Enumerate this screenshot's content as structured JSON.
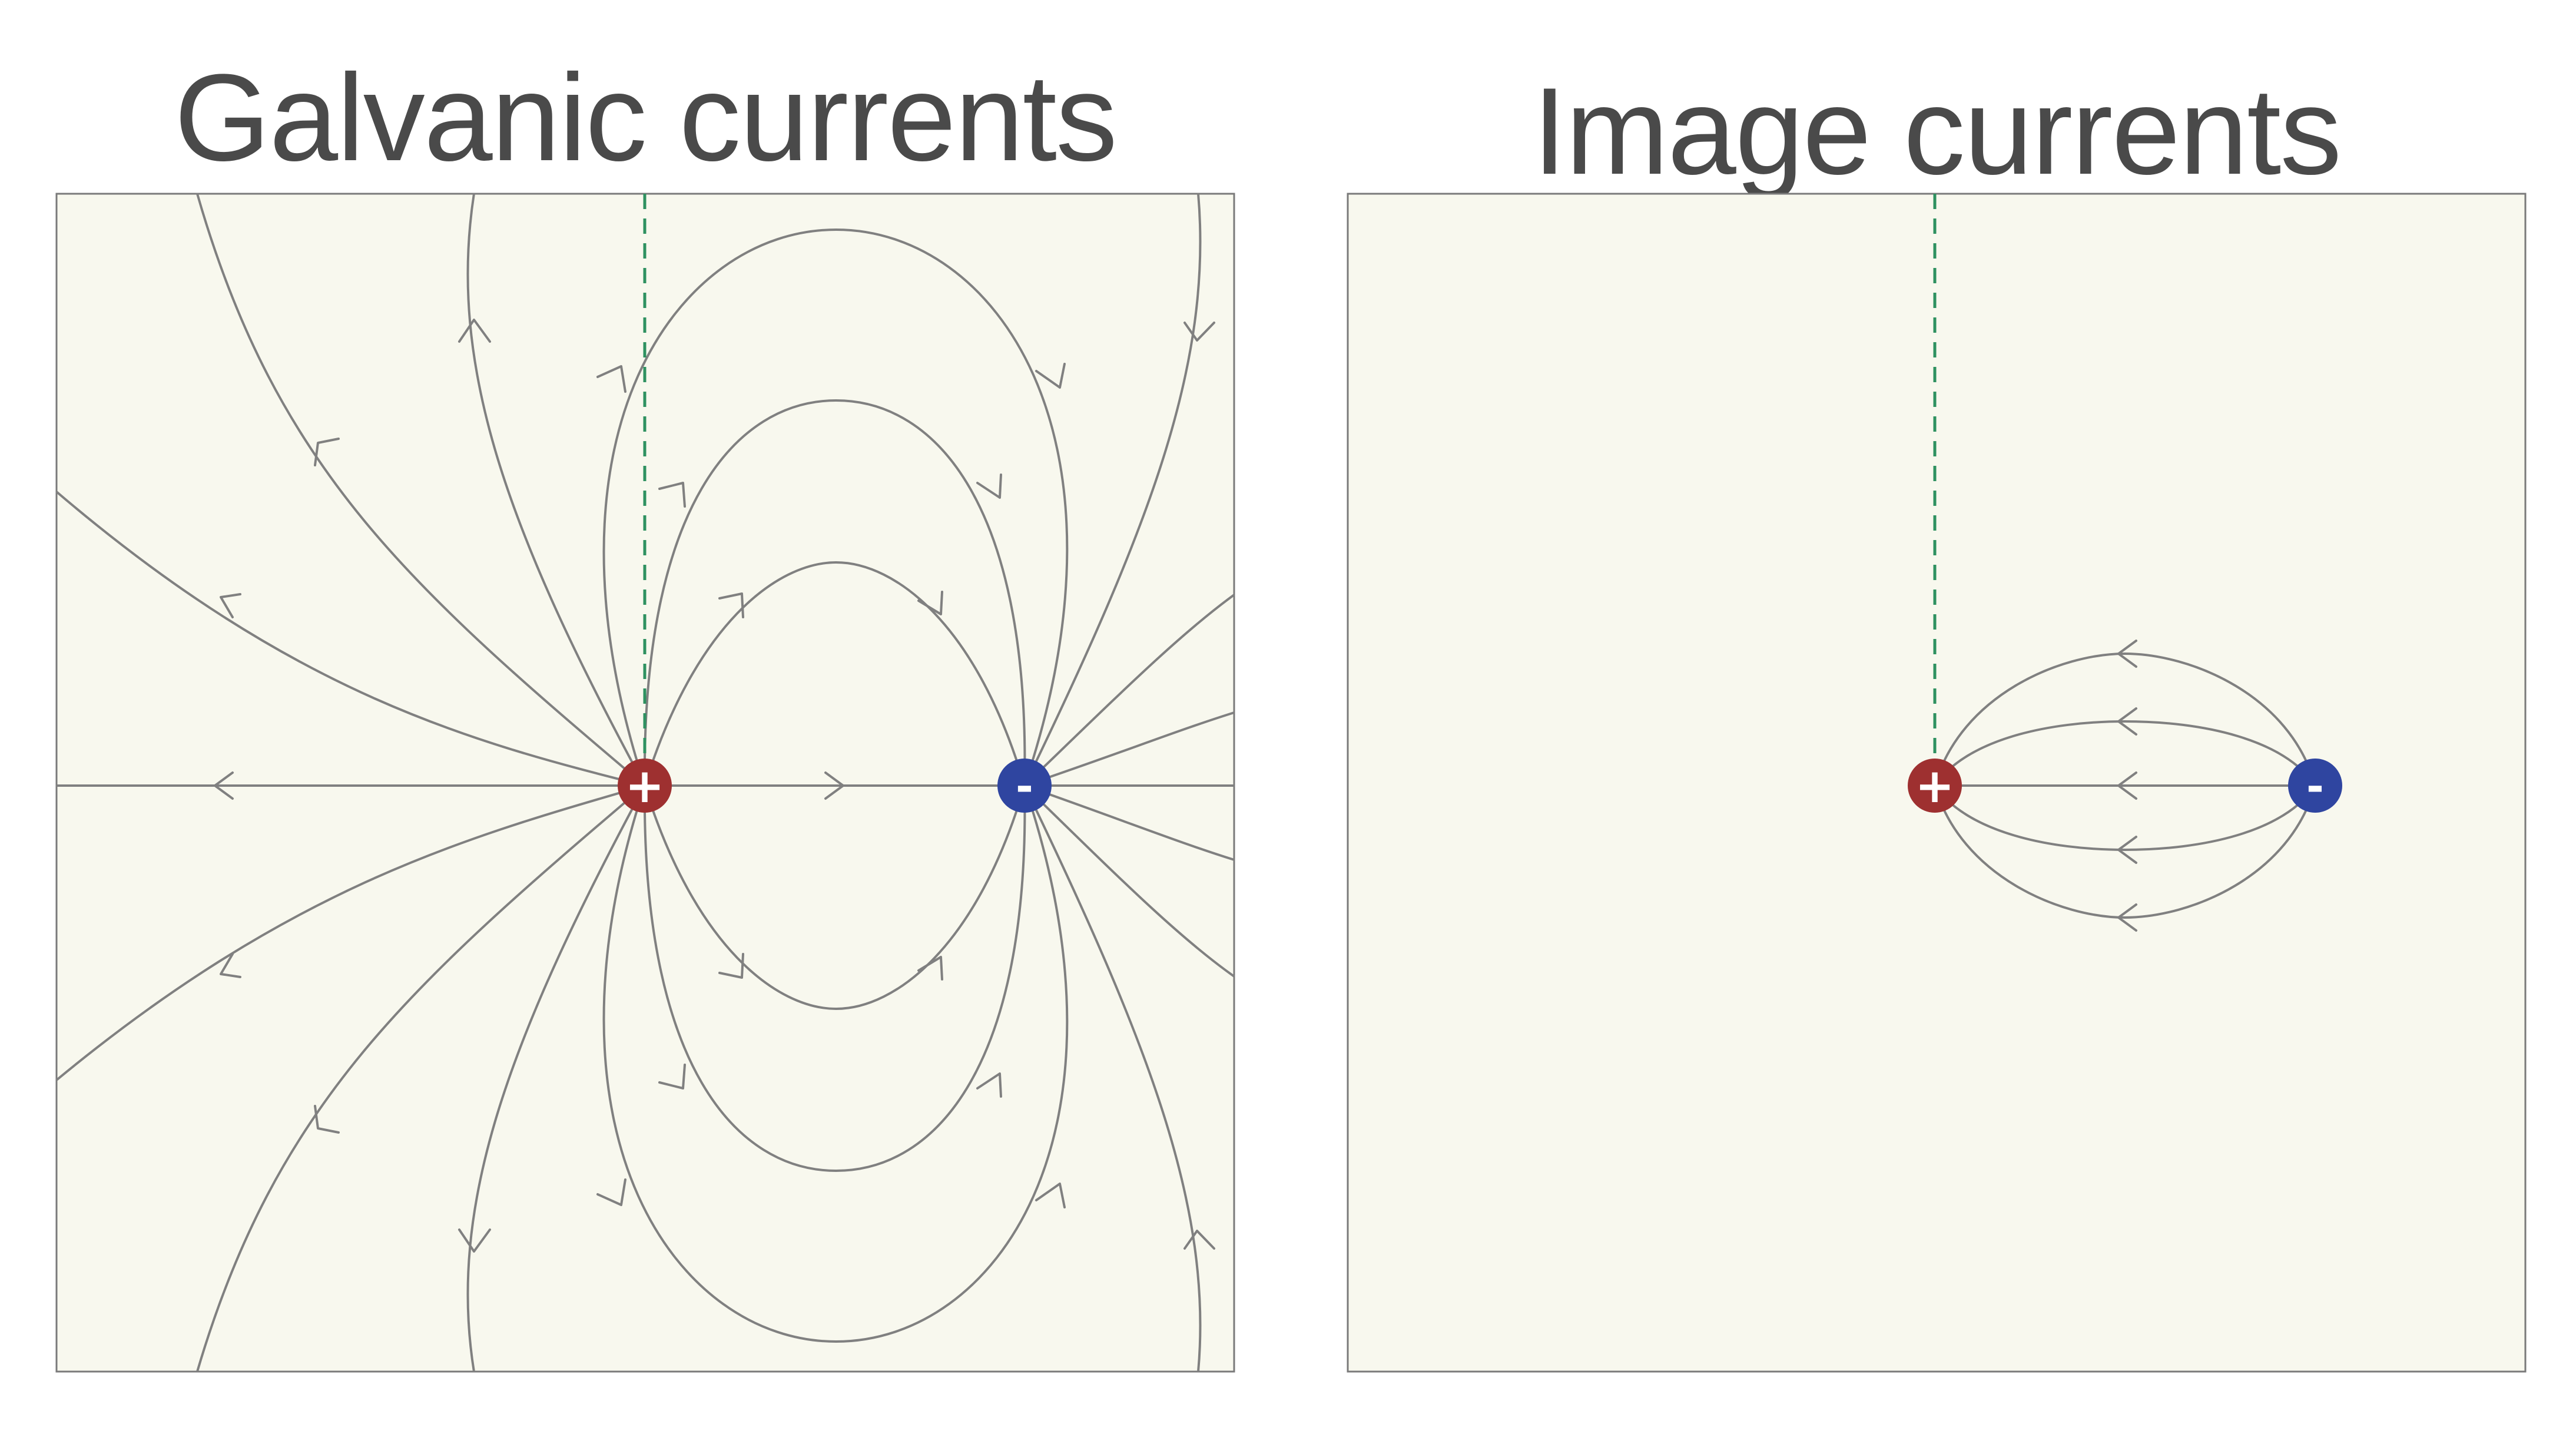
{
  "panels": [
    {
      "title": "Galvanic currents",
      "colors": {
        "background": "#f8f8ee",
        "lines": "#808080",
        "divider": "#2e9160"
      },
      "charges": [
        {
          "sign": "+",
          "color": "#9e3030"
        },
        {
          "sign": "-",
          "color": "#2f45a0"
        }
      ]
    },
    {
      "title": "Image currents",
      "colors": {
        "background": "#f8f8ee",
        "lines": "#808080",
        "divider": "#2e9160"
      },
      "charges": [
        {
          "sign": "+",
          "color": "#9e3030"
        },
        {
          "sign": "-",
          "color": "#2f45a0"
        }
      ]
    }
  ]
}
